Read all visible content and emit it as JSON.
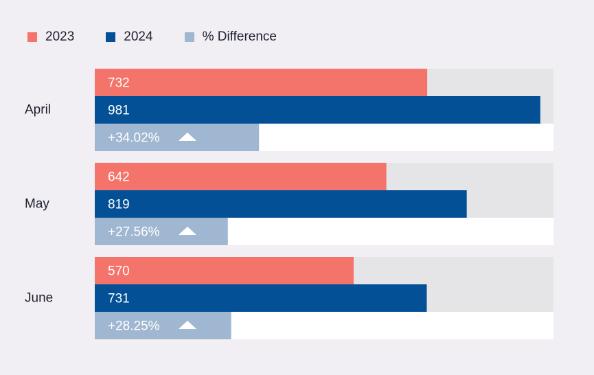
{
  "legend": {
    "items": [
      {
        "label": "2023",
        "color": "#f4736a"
      },
      {
        "label": "2024",
        "color": "#035096"
      },
      {
        "label": "% Difference",
        "color": "#a0b7d1"
      }
    ]
  },
  "colors": {
    "track": "#e5e5e8",
    "diff_track": "#ffffff",
    "background": "#f1eff4",
    "label_text": "#1f1f2e",
    "bar_text": "#ffffff"
  },
  "chart_data": {
    "type": "bar",
    "orientation": "horizontal",
    "categories": [
      "April",
      "May",
      "June"
    ],
    "series": [
      {
        "name": "2023",
        "values": [
          732,
          642,
          570
        ]
      },
      {
        "name": "2024",
        "values": [
          981,
          819,
          731
        ]
      }
    ],
    "difference": {
      "name": "% Difference",
      "labels": [
        "+34.02%",
        "+27.56%",
        "+28.25%"
      ],
      "values": [
        34.02,
        27.56,
        28.25
      ],
      "direction_icon": "triangle-up-icon"
    },
    "xlim": [
      0,
      1010
    ],
    "diff_range": [
      0,
      95
    ]
  }
}
